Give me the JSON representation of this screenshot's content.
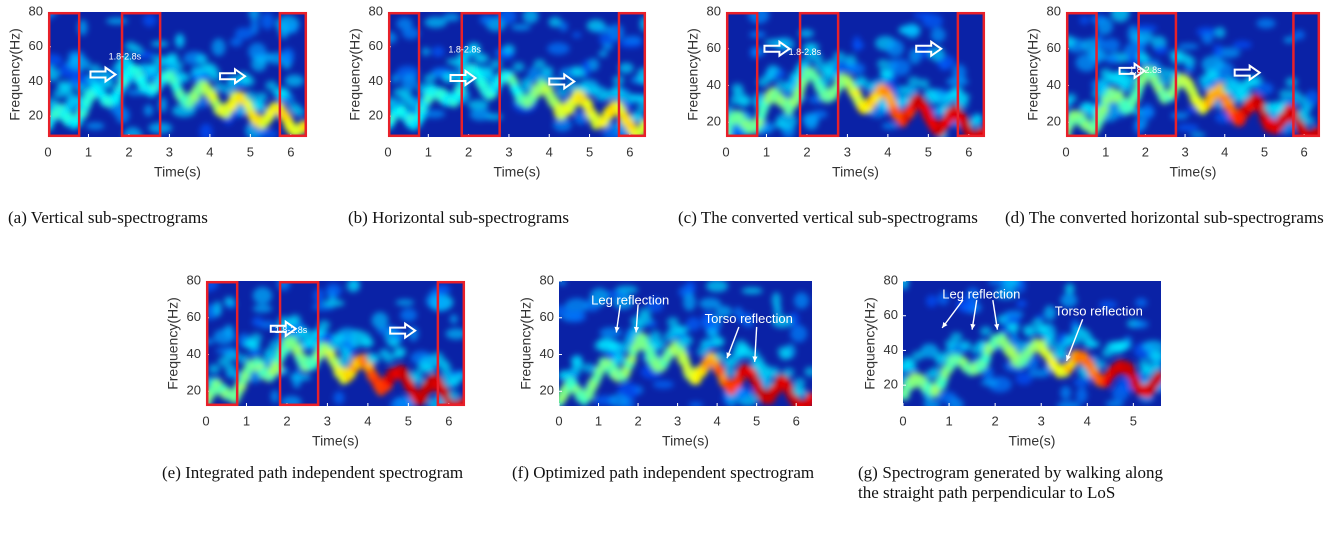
{
  "chart_data": [
    {
      "type": "heatmap",
      "xlabel": "Time(s)",
      "ylabel": "Frequency(Hz)",
      "xlim": [
        0,
        6.4
      ],
      "ylim": [
        8,
        80
      ],
      "xticks": [
        0,
        1,
        2,
        3,
        4,
        5,
        6
      ],
      "yticks": [
        20,
        40,
        60,
        80
      ],
      "highlight_ranges": [
        [
          0,
          0.8
        ],
        [
          1.8,
          2.8
        ],
        [
          5.7,
          6.4
        ]
      ],
      "annotations": [
        "1.8-2.8s"
      ],
      "caption": "(a) Vertical sub-spectrograms"
    },
    {
      "type": "heatmap",
      "xlabel": "Time(s)",
      "ylabel": "Frequency(Hz)",
      "xlim": [
        0,
        6.4
      ],
      "ylim": [
        8,
        80
      ],
      "xticks": [
        0,
        1,
        2,
        3,
        4,
        5,
        6
      ],
      "yticks": [
        20,
        40,
        60,
        80
      ],
      "highlight_ranges": [
        [
          0,
          0.8
        ],
        [
          1.8,
          2.8
        ],
        [
          5.7,
          6.4
        ]
      ],
      "annotations": [
        "1.8-2.8s"
      ],
      "caption": "(b) Horizontal sub-spectrograms"
    },
    {
      "type": "heatmap",
      "xlabel": "Time(s)",
      "ylabel": "Frequency(Hz)",
      "xlim": [
        0,
        6.4
      ],
      "ylim": [
        12,
        80
      ],
      "xticks": [
        0,
        1,
        2,
        3,
        4,
        5,
        6
      ],
      "yticks": [
        20,
        40,
        60,
        80
      ],
      "highlight_ranges": [
        [
          0,
          0.8
        ],
        [
          1.8,
          2.8
        ],
        [
          5.7,
          6.4
        ]
      ],
      "annotations": [
        "1.8-2.8s"
      ],
      "caption": "(c) The converted vertical sub-spectrograms"
    },
    {
      "type": "heatmap",
      "xlabel": "Time(s)",
      "ylabel": "Frequency(Hz)",
      "xlim": [
        0,
        6.4
      ],
      "ylim": [
        12,
        80
      ],
      "xticks": [
        0,
        1,
        2,
        3,
        4,
        5,
        6
      ],
      "yticks": [
        20,
        40,
        60,
        80
      ],
      "highlight_ranges": [
        [
          0,
          0.8
        ],
        [
          1.8,
          2.8
        ],
        [
          5.7,
          6.4
        ]
      ],
      "annotations": [
        "1.8-2.8s"
      ],
      "caption": "(d) The converted horizontal sub-spectrograms"
    },
    {
      "type": "heatmap",
      "xlabel": "Time(s)",
      "ylabel": "Frequency(Hz)",
      "xlim": [
        0,
        6.4
      ],
      "ylim": [
        12,
        80
      ],
      "xticks": [
        0,
        1,
        2,
        3,
        4,
        5,
        6
      ],
      "yticks": [
        20,
        40,
        60,
        80
      ],
      "highlight_ranges": [
        [
          0,
          0.8
        ],
        [
          1.8,
          2.8
        ],
        [
          5.7,
          6.4
        ]
      ],
      "annotations": [
        "1.8-2.8s"
      ],
      "caption": "(e) Integrated path independent spectrogram"
    },
    {
      "type": "heatmap",
      "xlabel": "Time(s)",
      "ylabel": "Frequency(Hz)",
      "xlim": [
        0,
        6.4
      ],
      "ylim": [
        12,
        80
      ],
      "xticks": [
        0,
        1,
        2,
        3,
        4,
        5,
        6
      ],
      "yticks": [
        20,
        40,
        60,
        80
      ],
      "annotations": [
        "Leg reflection",
        "Torso reflection"
      ],
      "caption": "(f) Optimized path independent spectrogram"
    },
    {
      "type": "heatmap",
      "xlabel": "Time(s)",
      "ylabel": "Frequency(Hz)",
      "xlim": [
        0,
        5.6
      ],
      "ylim": [
        8,
        80
      ],
      "xticks": [
        0,
        1,
        2,
        3,
        4,
        5
      ],
      "yticks": [
        20,
        40,
        60,
        80
      ],
      "annotations": [
        "Leg reflection",
        "Torso reflection"
      ],
      "caption": "(g) Spectrogram generated by walking along the straight path perpendicular to LoS"
    }
  ]
}
